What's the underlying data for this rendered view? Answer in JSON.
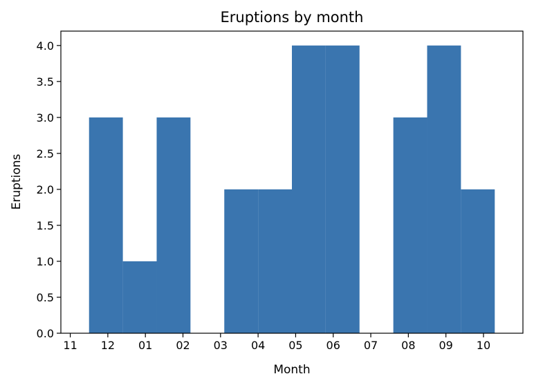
{
  "chart_data": {
    "type": "bar",
    "title": "Eruptions by month",
    "xlabel": "Month",
    "ylabel": "Eruptions",
    "bar_color": "#3A75AF",
    "x_ticks": [
      "11",
      "12",
      "01",
      "02",
      "03",
      "04",
      "05",
      "06",
      "07",
      "08",
      "09",
      "10"
    ],
    "bins": [
      {
        "from": 1.5,
        "to": 2.4,
        "value": 3
      },
      {
        "from": 2.4,
        "to": 3.3,
        "value": 1
      },
      {
        "from": 3.3,
        "to": 4.2,
        "value": 3
      },
      {
        "from": 5.1,
        "to": 6.0,
        "value": 2
      },
      {
        "from": 6.0,
        "to": 6.9,
        "value": 2
      },
      {
        "from": 6.9,
        "to": 7.8,
        "value": 4
      },
      {
        "from": 7.8,
        "to": 8.7,
        "value": 4
      },
      {
        "from": 9.6,
        "to": 10.5,
        "value": 3
      },
      {
        "from": 10.5,
        "to": 11.4,
        "value": 4
      },
      {
        "from": 11.4,
        "to": 12.3,
        "value": 2
      }
    ],
    "y_ticks": [
      "0.0",
      "0.5",
      "1.0",
      "1.5",
      "2.0",
      "2.5",
      "3.0",
      "3.5",
      "4.0"
    ],
    "xlim": [
      0.75,
      13.05
    ],
    "ylim": [
      0,
      4.2
    ],
    "grid": false,
    "legend": false
  }
}
